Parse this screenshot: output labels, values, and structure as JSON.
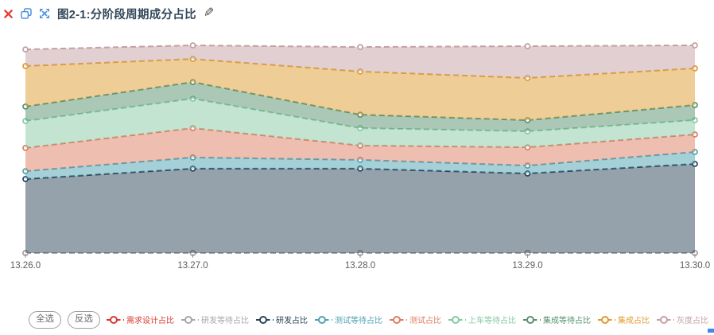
{
  "header": {
    "title": "图2-1:分阶段周期成分占比",
    "icons": {
      "close": "close-icon",
      "copy": "copy-icon",
      "fullscreen": "fullscreen-icon",
      "edit": "edit-icon",
      "edit_glyph": "✎"
    }
  },
  "colors": {
    "toolbar_icon_blue": "#4d94e1",
    "close_icon_red": "#e23c35",
    "title_text": "#33475b",
    "axis_label": "#5c5c5c",
    "corner_handle_blue": "#4285f4"
  },
  "legend": {
    "select_all_label": "全选",
    "invert_selection_label": "反选"
  },
  "chart_data": {
    "type": "area",
    "stacked": true,
    "title": "图2-1:分阶段周期成分占比",
    "x_tick_labels": [
      "13.26.0",
      "13.27.0",
      "13.28.0",
      "13.29.0",
      "13.30.0"
    ],
    "xlabel": "",
    "ylabel": "",
    "ylim": [
      0,
      1
    ],
    "y_axis_visible": false,
    "grid": false,
    "line_style": "dashed",
    "marker": "open-circle",
    "legend_position": "bottom",
    "series": [
      {
        "name": "需求设计占比",
        "color": "#d7392f",
        "values": [
          0,
          0,
          0,
          0,
          0
        ]
      },
      {
        "name": "研发等待占比",
        "color": "#a7a7a7",
        "values": [
          0,
          0,
          0,
          0,
          0
        ]
      },
      {
        "name": "研发占比",
        "color": "#2b4357",
        "values": [
          0.347,
          0.396,
          0.396,
          0.373,
          0.418
        ]
      },
      {
        "name": "测试等待占比",
        "color": "#4ea2b2",
        "values": [
          0.037,
          0.052,
          0.041,
          0.037,
          0.056
        ]
      },
      {
        "name": "测试占比",
        "color": "#dd7e62",
        "values": [
          0.109,
          0.138,
          0.067,
          0.086,
          0.082
        ]
      },
      {
        "name": "上车等待占比",
        "color": "#85c9a3",
        "values": [
          0.126,
          0.138,
          0.082,
          0.075,
          0.067
        ]
      },
      {
        "name": "集成等待占比",
        "color": "#57926e",
        "values": [
          0.068,
          0.078,
          0.063,
          0.052,
          0.071
        ]
      },
      {
        "name": "集成占比",
        "color": "#df9c2d",
        "values": [
          0.19,
          0.108,
          0.202,
          0.198,
          0.172
        ]
      },
      {
        "name": "灰度占比",
        "color": "#c4a0a4",
        "values": [
          0.078,
          0.064,
          0.115,
          0.149,
          0.108
        ]
      }
    ]
  }
}
